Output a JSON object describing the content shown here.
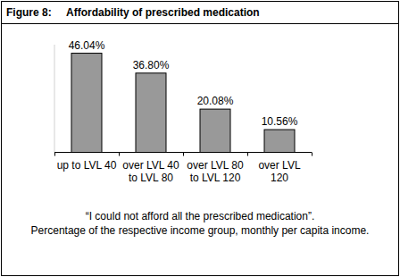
{
  "chart_data": {
    "type": "bar",
    "figure_label": "Figure 8:",
    "title": "Affordability of prescribed medication",
    "categories": [
      "up to LVL 40",
      "over LVL 40\nto LVL 80",
      "over LVL 80\nto LVL 120",
      "over LVL\n120"
    ],
    "values": [
      46.04,
      36.8,
      20.08,
      10.56
    ],
    "value_labels": [
      "46.04%",
      "36.80%",
      "20.08%",
      "10.56%"
    ],
    "color": "#999999",
    "ylim": [
      0,
      50
    ],
    "tick_labels": false,
    "data_labels": true,
    "annotations": [
      "“I could not afford all the prescribed medication”.",
      "Percentage of the respective income group, monthly per capita income."
    ]
  }
}
